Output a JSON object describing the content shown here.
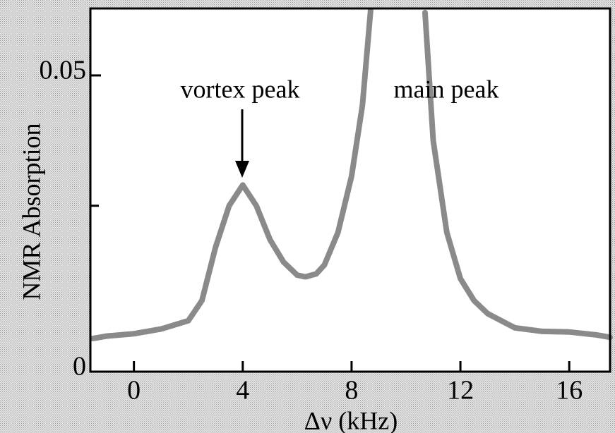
{
  "chart_data": {
    "type": "line",
    "xlabel": "Δν (kHz)",
    "ylabel": "NMR Absorption",
    "annotations": [
      "vortex peak",
      "main peak"
    ],
    "x": [
      -1.5,
      -1,
      0,
      1,
      2,
      2.5,
      3,
      3.5,
      4,
      4.5,
      5,
      5.5,
      6,
      6.3,
      6.7,
      7,
      7.5,
      8,
      8.4,
      8.7,
      9.5,
      10.7,
      11,
      11.5,
      12,
      12.5,
      13,
      14,
      15,
      16,
      17,
      17.5
    ],
    "series": [
      {
        "name": "NMR Absorption",
        "color": "#8a8a8a",
        "values": [
          0.0056,
          0.006,
          0.0064,
          0.0072,
          0.0086,
          0.012,
          0.021,
          0.028,
          0.0315,
          0.028,
          0.0223,
          0.0185,
          0.0163,
          0.016,
          0.0165,
          0.018,
          0.0235,
          0.033,
          0.045,
          0.061,
          null,
          0.0606,
          0.039,
          0.0235,
          0.0157,
          0.012,
          0.0098,
          0.0074,
          0.0068,
          0.0067,
          0.0062,
          0.0058
        ]
      }
    ],
    "xlim": [
      -1.6,
      17.5
    ],
    "xticks": [
      0,
      4,
      8,
      12,
      16
    ],
    "ylim": [
      0,
      0.0613
    ],
    "yticks": [
      0,
      0.05
    ],
    "yminor_ticks": [
      0.028
    ],
    "grid": false
  }
}
